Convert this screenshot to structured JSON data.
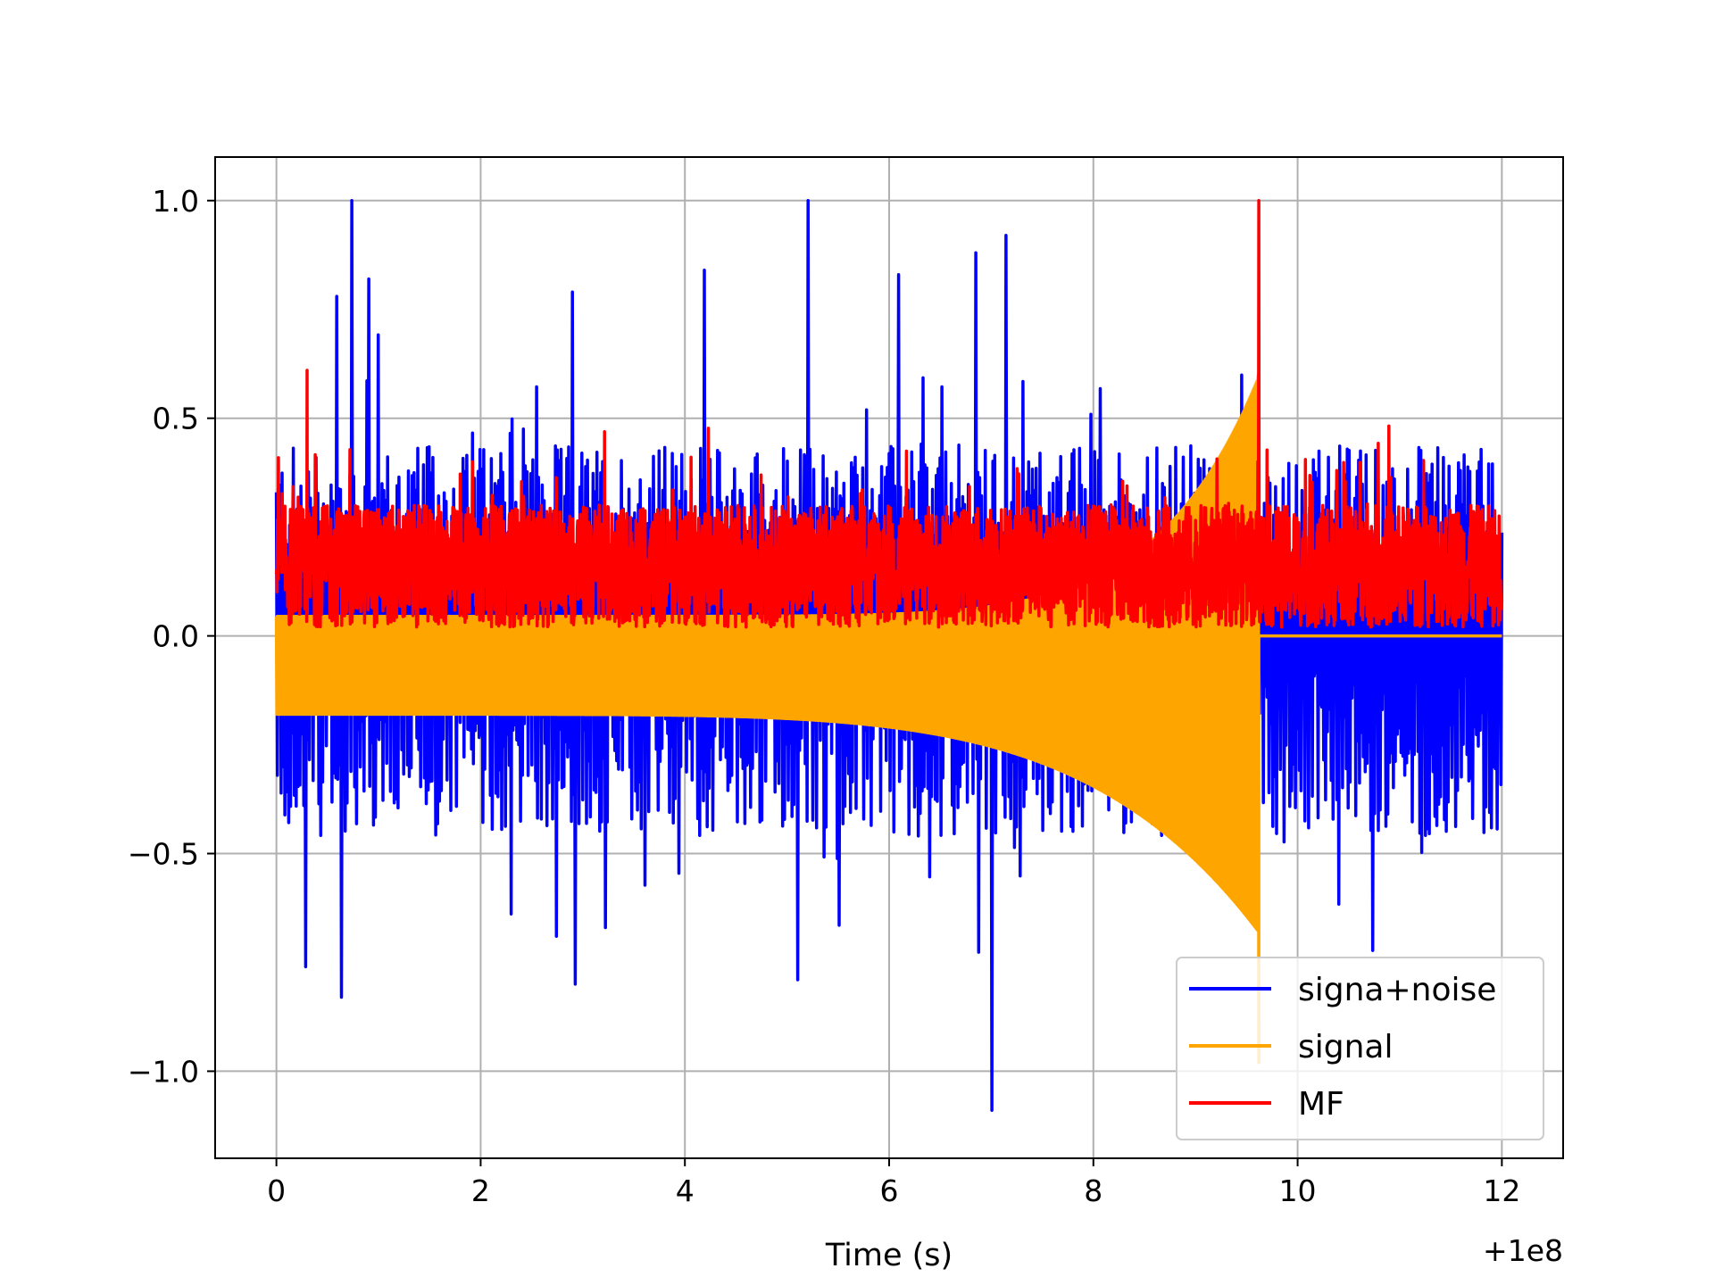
{
  "chart_data": {
    "type": "line",
    "title": "",
    "xlabel": "Time (s)",
    "ylabel": "",
    "x_offset_label": "+1e8",
    "xlim": [
      -0.6,
      12.6
    ],
    "ylim": [
      -1.2,
      1.1
    ],
    "grid": true,
    "legend_position": "bottom-right",
    "x_ticks": [
      0,
      2,
      4,
      6,
      8,
      10,
      12
    ],
    "x_tick_labels": [
      "0",
      "2",
      "4",
      "6",
      "8",
      "10",
      "12"
    ],
    "y_ticks": [
      1.0,
      0.5,
      0.0,
      -0.5,
      -1.0
    ],
    "y_tick_labels": [
      "1.0",
      "0.5",
      "0.0",
      "−0.5",
      "−1.0"
    ],
    "series": [
      {
        "name": "signa+noise",
        "color": "#0000ff",
        "x_range": [
          0,
          12
        ],
        "peaks": [
          {
            "x": 0.73,
            "y": 1.0
          },
          {
            "x": 0.9,
            "y": 0.82
          },
          {
            "x": 0.6,
            "y": 0.78
          },
          {
            "x": 5.2,
            "y": 1.0
          },
          {
            "x": 7.15,
            "y": 0.92
          },
          {
            "x": 6.85,
            "y": 0.88
          },
          {
            "x": 4.2,
            "y": 0.84
          },
          {
            "x": 6.1,
            "y": 0.83
          },
          {
            "x": 2.9,
            "y": 0.79
          },
          {
            "x": 7.0,
            "y": -1.09
          },
          {
            "x": 0.63,
            "y": -0.83
          },
          {
            "x": 2.93,
            "y": -0.8
          },
          {
            "x": 0.28,
            "y": -0.76
          },
          {
            "x": 5.1,
            "y": -0.79
          }
        ]
      },
      {
        "name": "signal",
        "color": "#ffa500",
        "x_range": [
          0,
          9.62
        ],
        "peaks": [
          {
            "x": 9.6,
            "y": 0.6
          },
          {
            "x": 9.62,
            "y": -0.98
          }
        ],
        "after_end_value": 0.0
      },
      {
        "name": "MF",
        "color": "#ff0000",
        "x_range": [
          0,
          12
        ],
        "peaks": [
          {
            "x": 9.62,
            "y": 1.0
          },
          {
            "x": 0.3,
            "y": 0.61
          }
        ],
        "baseline_range": [
          0.02,
          0.3
        ]
      }
    ]
  }
}
